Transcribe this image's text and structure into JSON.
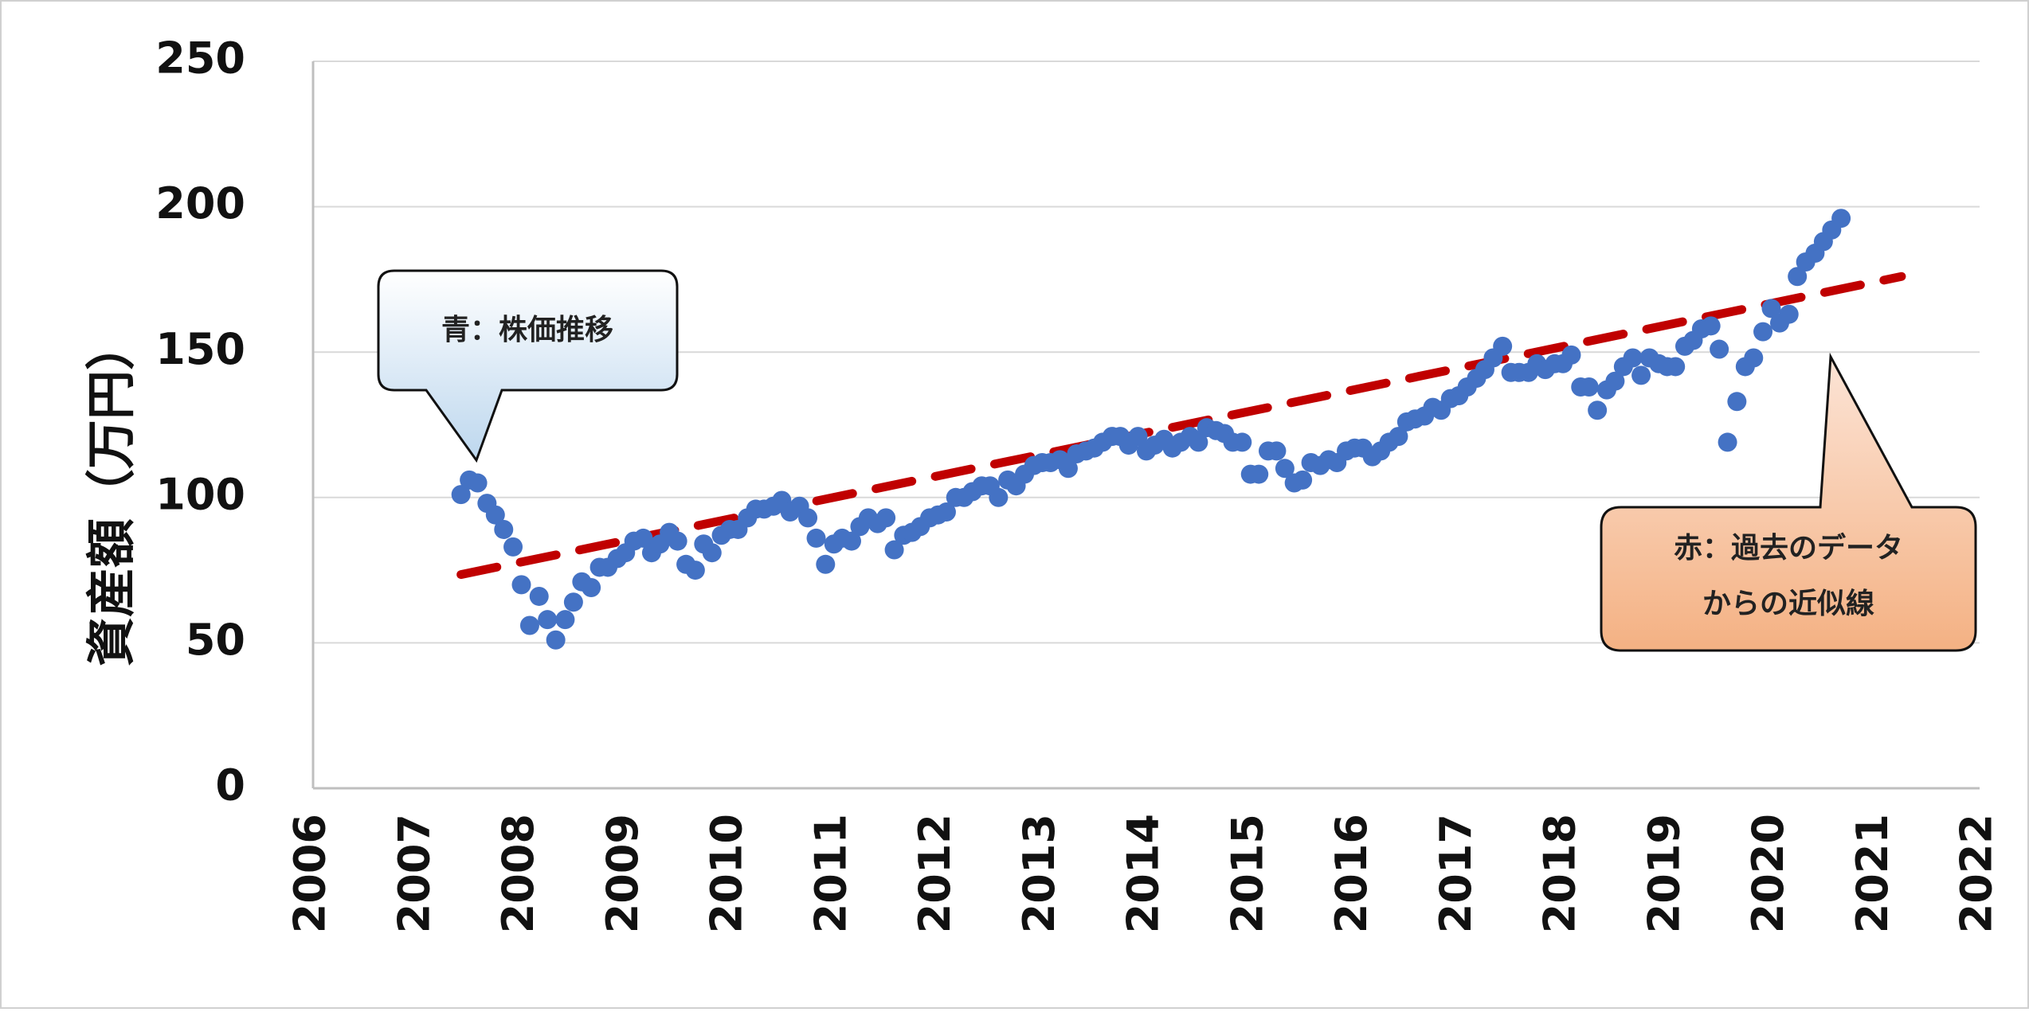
{
  "chart_data": {
    "type": "scatter",
    "title": "",
    "xlabel": "",
    "ylabel": "資産額（万円）",
    "xlim": [
      2006,
      2022
    ],
    "ylim": [
      0,
      250
    ],
    "x_ticks": [
      "2006",
      "2007",
      "2008",
      "2009",
      "2010",
      "2011",
      "2012",
      "2013",
      "2014",
      "2015",
      "2016",
      "2017",
      "2018",
      "2019",
      "2020",
      "2021",
      "2022"
    ],
    "y_ticks": [
      "0",
      "50",
      "100",
      "150",
      "200",
      "250"
    ],
    "grid": "horizontal",
    "series": [
      {
        "kind": "scatter",
        "color": "#4472C4",
        "points": [
          [
            2007.42,
            101
          ],
          [
            2007.5,
            106
          ],
          [
            2007.58,
            105
          ],
          [
            2007.67,
            98
          ],
          [
            2007.75,
            94
          ],
          [
            2007.83,
            89
          ],
          [
            2007.92,
            83
          ],
          [
            2008.0,
            70
          ],
          [
            2008.08,
            56
          ],
          [
            2008.17,
            66
          ],
          [
            2008.25,
            58
          ],
          [
            2008.33,
            51
          ],
          [
            2008.42,
            58
          ],
          [
            2008.5,
            64
          ],
          [
            2008.58,
            71
          ],
          [
            2008.67,
            69
          ],
          [
            2008.75,
            76
          ],
          [
            2008.83,
            76
          ],
          [
            2008.92,
            79
          ],
          [
            2009.0,
            81
          ],
          [
            2009.08,
            85
          ],
          [
            2009.17,
            86
          ],
          [
            2009.25,
            81
          ],
          [
            2009.33,
            84
          ],
          [
            2009.42,
            88
          ],
          [
            2009.5,
            85
          ],
          [
            2009.58,
            77
          ],
          [
            2009.67,
            75
          ],
          [
            2009.75,
            84
          ],
          [
            2009.83,
            81
          ],
          [
            2009.92,
            87
          ],
          [
            2010.0,
            89
          ],
          [
            2010.08,
            89
          ],
          [
            2010.17,
            93
          ],
          [
            2010.25,
            96
          ],
          [
            2010.33,
            96
          ],
          [
            2010.42,
            97
          ],
          [
            2010.5,
            99
          ],
          [
            2010.58,
            95
          ],
          [
            2010.67,
            97
          ],
          [
            2010.75,
            93
          ],
          [
            2010.83,
            86
          ],
          [
            2010.92,
            77
          ],
          [
            2011.0,
            84
          ],
          [
            2011.08,
            86
          ],
          [
            2011.17,
            85
          ],
          [
            2011.25,
            90
          ],
          [
            2011.33,
            93
          ],
          [
            2011.42,
            91
          ],
          [
            2011.5,
            93
          ],
          [
            2011.58,
            82
          ],
          [
            2011.67,
            87
          ],
          [
            2011.75,
            88
          ],
          [
            2011.83,
            90
          ],
          [
            2011.92,
            93
          ],
          [
            2012.0,
            94
          ],
          [
            2012.08,
            95
          ],
          [
            2012.17,
            100
          ],
          [
            2012.25,
            100
          ],
          [
            2012.33,
            102
          ],
          [
            2012.42,
            104
          ],
          [
            2012.5,
            104
          ],
          [
            2012.58,
            100
          ],
          [
            2012.67,
            106
          ],
          [
            2012.75,
            104
          ],
          [
            2012.83,
            108
          ],
          [
            2012.92,
            111
          ],
          [
            2013.0,
            112
          ],
          [
            2013.08,
            112
          ],
          [
            2013.17,
            113
          ],
          [
            2013.25,
            110
          ],
          [
            2013.33,
            115
          ],
          [
            2013.42,
            116
          ],
          [
            2013.5,
            117
          ],
          [
            2013.58,
            119
          ],
          [
            2013.67,
            121
          ],
          [
            2013.75,
            121
          ],
          [
            2013.83,
            118
          ],
          [
            2013.92,
            121
          ],
          [
            2014.0,
            116
          ],
          [
            2014.08,
            118
          ],
          [
            2014.17,
            120
          ],
          [
            2014.25,
            117
          ],
          [
            2014.33,
            119
          ],
          [
            2014.42,
            121
          ],
          [
            2014.5,
            119
          ],
          [
            2014.58,
            124
          ],
          [
            2014.67,
            123
          ],
          [
            2014.75,
            122
          ],
          [
            2014.83,
            119
          ],
          [
            2014.92,
            119
          ],
          [
            2015.0,
            108
          ],
          [
            2015.08,
            108
          ],
          [
            2015.17,
            116
          ],
          [
            2015.25,
            116
          ],
          [
            2015.33,
            110
          ],
          [
            2015.42,
            105
          ],
          [
            2015.5,
            106
          ],
          [
            2015.58,
            112
          ],
          [
            2015.67,
            111
          ],
          [
            2015.75,
            113
          ],
          [
            2015.83,
            112
          ],
          [
            2015.92,
            116
          ],
          [
            2016.0,
            117
          ],
          [
            2016.08,
            117
          ],
          [
            2016.17,
            114
          ],
          [
            2016.25,
            116
          ],
          [
            2016.33,
            119
          ],
          [
            2016.42,
            121
          ],
          [
            2016.5,
            126
          ],
          [
            2016.58,
            127
          ],
          [
            2016.67,
            128
          ],
          [
            2016.75,
            131
          ],
          [
            2016.83,
            130
          ],
          [
            2016.92,
            134
          ],
          [
            2017.0,
            135
          ],
          [
            2017.08,
            138
          ],
          [
            2017.17,
            141
          ],
          [
            2017.25,
            144
          ],
          [
            2017.33,
            148
          ],
          [
            2017.42,
            152
          ],
          [
            2017.5,
            143
          ],
          [
            2017.58,
            143
          ],
          [
            2017.67,
            143
          ],
          [
            2017.75,
            146
          ],
          [
            2017.83,
            144
          ],
          [
            2017.92,
            146
          ],
          [
            2018.0,
            146
          ],
          [
            2018.08,
            149
          ],
          [
            2018.17,
            138
          ],
          [
            2018.25,
            138
          ],
          [
            2018.33,
            130
          ],
          [
            2018.42,
            137
          ],
          [
            2018.5,
            140
          ],
          [
            2018.58,
            145
          ],
          [
            2018.67,
            148
          ],
          [
            2018.75,
            142
          ],
          [
            2018.83,
            148
          ],
          [
            2018.92,
            146
          ],
          [
            2019.0,
            145
          ],
          [
            2019.08,
            145
          ],
          [
            2019.17,
            152
          ],
          [
            2019.25,
            154
          ],
          [
            2019.33,
            158
          ],
          [
            2019.42,
            159
          ],
          [
            2019.5,
            151
          ],
          [
            2019.58,
            119
          ],
          [
            2019.67,
            133
          ],
          [
            2019.75,
            145
          ],
          [
            2019.83,
            148
          ],
          [
            2019.92,
            157
          ],
          [
            2020.0,
            165
          ],
          [
            2020.08,
            160
          ],
          [
            2020.17,
            163
          ],
          [
            2020.25,
            176
          ],
          [
            2020.33,
            181
          ],
          [
            2020.42,
            184
          ],
          [
            2020.5,
            188
          ],
          [
            2020.58,
            192
          ],
          [
            2020.67,
            196
          ]
        ]
      },
      {
        "kind": "trend",
        "style": "dashed",
        "color": "#C00000",
        "points": [
          [
            2007.42,
            73.5
          ],
          [
            2021.25,
            176
          ]
        ]
      }
    ],
    "annotations": [
      {
        "text_lines": [
          "青：株価推移"
        ],
        "style": "blue-callout"
      },
      {
        "text_lines": [
          "赤：過去のデータ",
          "からの近似線"
        ],
        "style": "orange-callout"
      }
    ]
  }
}
